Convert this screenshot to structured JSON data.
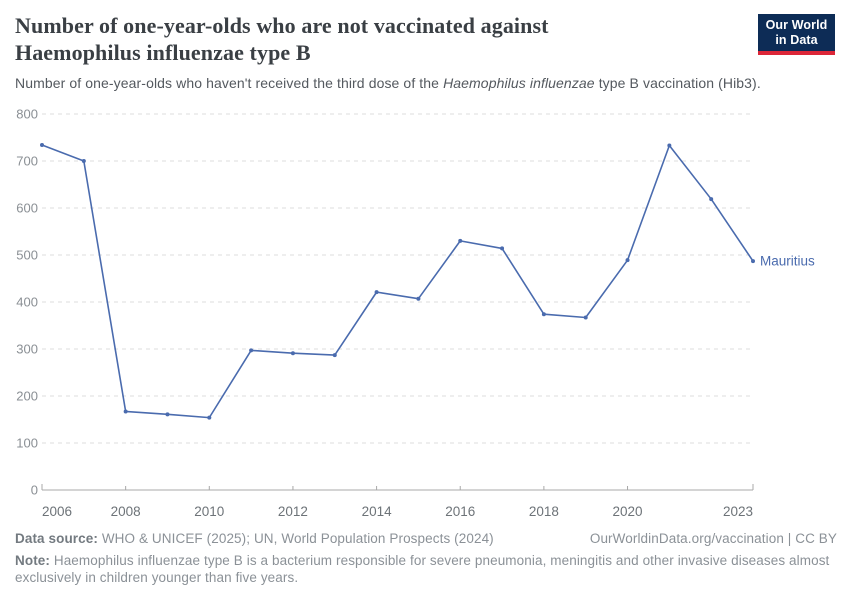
{
  "header": {
    "title": "Number of one-year-olds who are not vaccinated against Haemophilus influenzae type B",
    "subtitle_prefix": "Number of one-year-olds who haven't received the third dose of the ",
    "subtitle_italic": "Haemophilus influenzae",
    "subtitle_suffix": " type B vaccination (Hib3).",
    "logo_line1": "Our World",
    "logo_line2": "in Data",
    "logo_bg_color": "#0d2c56",
    "logo_accent_color": "#dc2638"
  },
  "chart_data": {
    "type": "line",
    "x": [
      2006,
      2007,
      2008,
      2009,
      2010,
      2011,
      2012,
      2013,
      2014,
      2015,
      2016,
      2017,
      2018,
      2019,
      2020,
      2021,
      2022,
      2023
    ],
    "series": [
      {
        "name": "Mauritius",
        "color": "#4a6bae",
        "values": [
          734,
          700,
          167,
          161,
          154,
          297,
          291,
          287,
          421,
          407,
          530,
          514,
          374,
          367,
          489,
          733,
          619,
          487
        ]
      }
    ],
    "entity_label": "Mauritius",
    "x_ticks": [
      2006,
      2008,
      2010,
      2012,
      2014,
      2016,
      2018,
      2020,
      2023
    ],
    "y_ticks": [
      0,
      100,
      200,
      300,
      400,
      500,
      600,
      700,
      800
    ],
    "xlim": [
      2006,
      2023
    ],
    "ylim": [
      0,
      800
    ],
    "grid": "horizontal-dashed",
    "legend_position": "end-of-line",
    "colors": {
      "gridline": "#dddddd",
      "axis": "#a8a8a8",
      "y_tick_label": "#8a8f94",
      "x_tick_label": "#6d7378"
    }
  },
  "footer": {
    "source_label": "Data source:",
    "source_text": " WHO & UNICEF (2025); UN, World Population Prospects (2024)",
    "link_text": "OurWorldinData.org/vaccination | CC BY",
    "note_label": "Note:",
    "note_text": " Haemophilus influenzae type B is a bacterium responsible for severe pneumonia, meningitis and other invasive diseases almost exclusively in children younger than five years."
  }
}
